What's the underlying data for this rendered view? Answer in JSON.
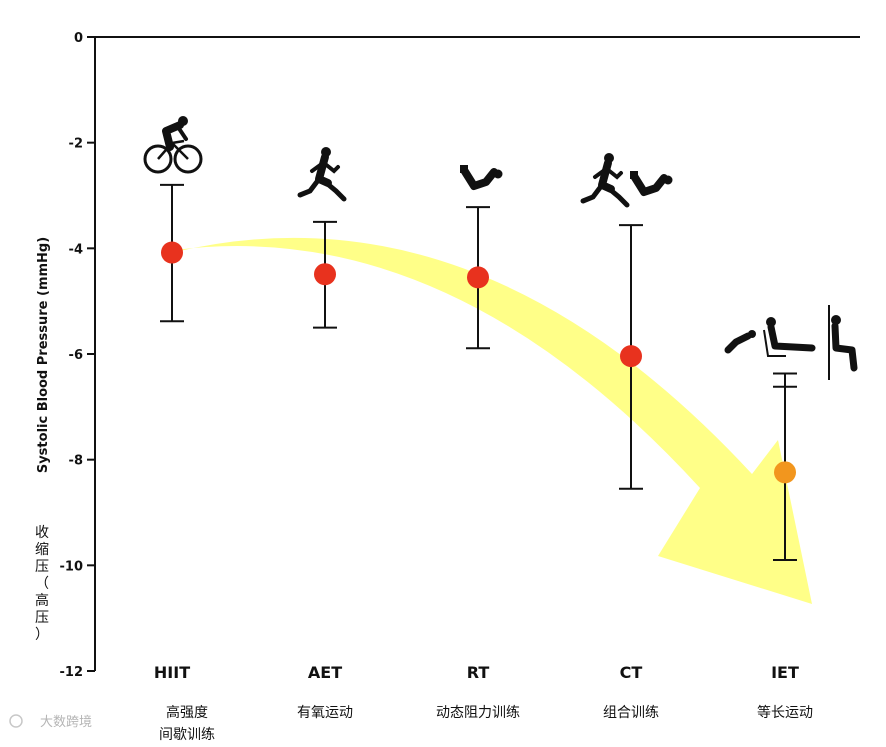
{
  "chart_data": {
    "type": "scatter",
    "title": "",
    "ylabel": "Systolic Blood Pressure (mmHg)",
    "ylabel_cn": [
      "收",
      "缩",
      "压",
      "（",
      "高",
      "压",
      "）"
    ],
    "ylim": [
      -12,
      0
    ],
    "yticks": [
      "0",
      "-2",
      "-4",
      "-6",
      "-8",
      "-10",
      "-12"
    ],
    "categories": [
      "HIIT",
      "AET",
      "RT",
      "CT",
      "IET"
    ],
    "categories_cn": [
      [
        "高强度",
        "间歇训练"
      ],
      [
        "有氧运动"
      ],
      [
        "动态阻力训练"
      ],
      [
        "组合训练"
      ],
      [
        "等长运动"
      ]
    ],
    "series": [
      {
        "values": [
          -4.08,
          -4.49,
          -4.55,
          -6.04,
          -8.24
        ],
        "ci_low": [
          -5.38,
          -5.5,
          -5.89,
          -8.55,
          -9.9
        ],
        "ci_high": [
          -2.8,
          -3.5,
          -3.22,
          -3.56,
          -6.62
        ]
      }
    ],
    "ci_extra_cap": [
      null,
      null,
      null,
      null,
      -6.37
    ],
    "colors": {
      "point": "#e8321e",
      "point_highlight": "#f2961e",
      "arrow": "#ffff66",
      "axis": "#111111"
    },
    "icons": [
      "cyclist-icon",
      "runner-icon",
      "weightlifter-icon",
      "runner-and-weightlifter-icon",
      "isometric-exercises-icon"
    ],
    "watermark": "大数跨境"
  }
}
